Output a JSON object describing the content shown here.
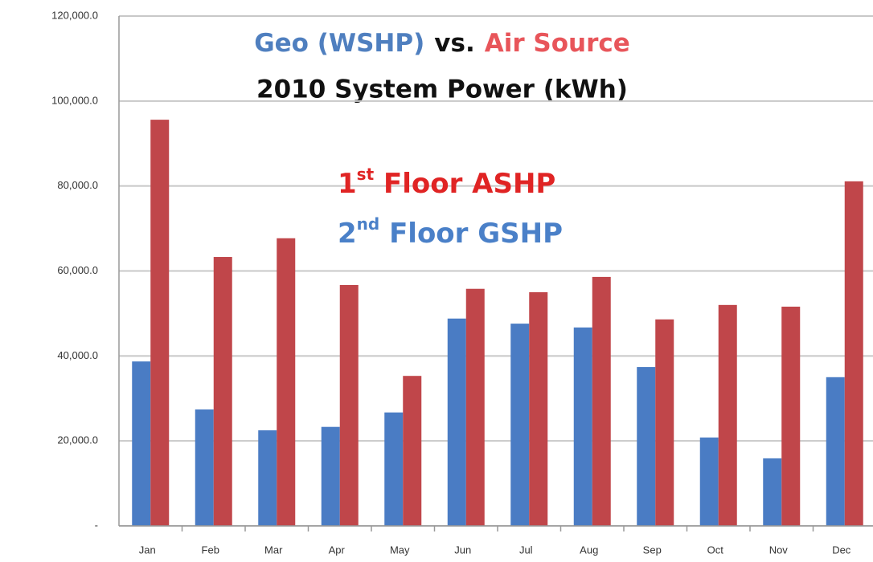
{
  "chart_data": {
    "type": "bar",
    "title_parts": [
      {
        "text": "Geo (WSHP)",
        "color": "#4f7fbf"
      },
      {
        "text": "vs.",
        "color": "#111111"
      },
      {
        "text": "Air Source",
        "color": "#e8555a"
      }
    ],
    "subtitle": "2010 System Power (kWh)",
    "categories": [
      "Jan",
      "Feb",
      "Mar",
      "Apr",
      "May",
      "Jun",
      "Jul",
      "Aug",
      "Sep",
      "Oct",
      "Nov",
      "Dec"
    ],
    "series": [
      {
        "name": "2nd Floor GSHP",
        "color": "#4a7cc4",
        "legend_color": "#4a80c8",
        "values": [
          38700,
          27400,
          22500,
          23300,
          26700,
          48800,
          47600,
          46700,
          37400,
          20800,
          15900,
          35000
        ]
      },
      {
        "name": "1st Floor ASHP",
        "color": "#c0464a",
        "legend_color": "#e02424",
        "values": [
          95600,
          63300,
          67700,
          56700,
          35300,
          55800,
          55000,
          58600,
          48600,
          52000,
          51600,
          81100
        ]
      }
    ],
    "ylim": [
      0,
      120000
    ],
    "yticks": [
      {
        "value": 0,
        "label": "-"
      },
      {
        "value": 20000,
        "label": "20,000.0"
      },
      {
        "value": 40000,
        "label": "40,000.0"
      },
      {
        "value": 60000,
        "label": "60,000.0"
      },
      {
        "value": 80000,
        "label": "80,000.0"
      },
      {
        "value": 100000,
        "label": "100,000.0"
      },
      {
        "value": 120000,
        "label": "120,000.0"
      }
    ],
    "grid": true
  }
}
